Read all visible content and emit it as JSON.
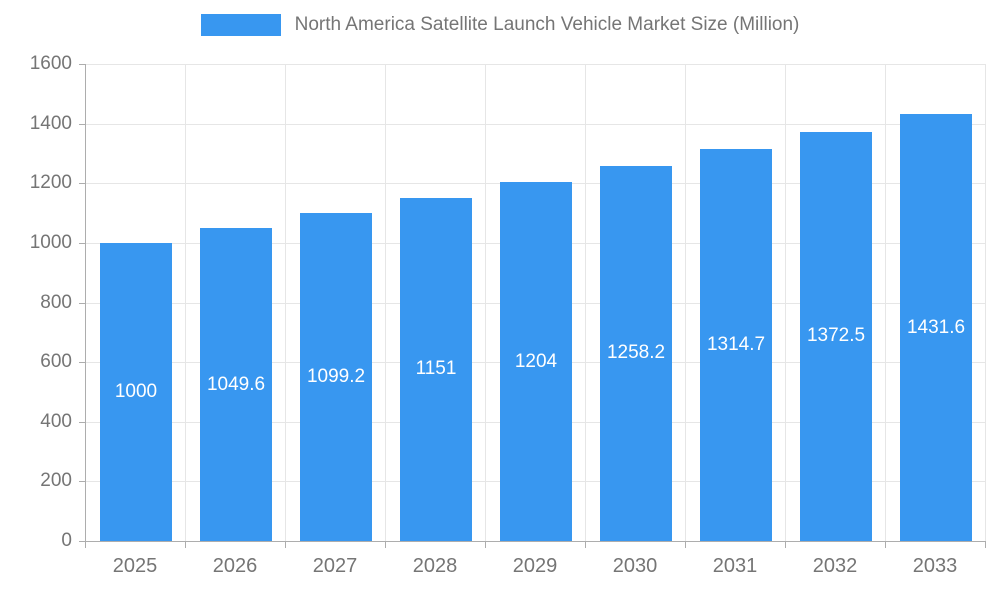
{
  "chart_data": {
    "type": "bar",
    "title": "North America Satellite Launch Vehicle Market Size (Million)",
    "categories": [
      "2025",
      "2026",
      "2027",
      "2028",
      "2029",
      "2030",
      "2031",
      "2032",
      "2033"
    ],
    "values": [
      1000,
      1049.6,
      1099.2,
      1151,
      1204,
      1258.2,
      1314.7,
      1372.5,
      1431.6
    ],
    "value_labels": [
      "1000",
      "1049.6",
      "1099.2",
      "1151",
      "1204",
      "1258.2",
      "1314.7",
      "1372.5",
      "1431.6"
    ],
    "xlabel": "",
    "ylabel": "",
    "ylim": [
      0,
      1600
    ],
    "ytick_step": 200,
    "grid": true,
    "legend_position": "top",
    "colors": {
      "bar": "#3897f0",
      "bar_label": "#ffffff",
      "axis_text": "#757575",
      "grid_line": "#e6e6e6",
      "axis_line": "#adadad",
      "background": "#ffffff"
    }
  }
}
